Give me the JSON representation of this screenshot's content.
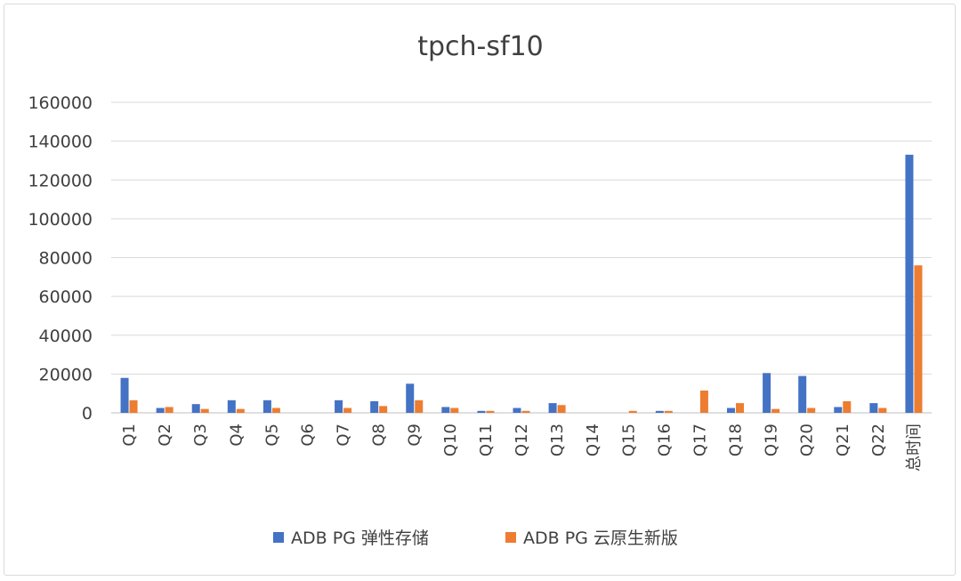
{
  "chart_data": {
    "type": "bar",
    "title": "tpch-sf10",
    "xlabel": "",
    "ylabel": "",
    "ylim": [
      0,
      160000
    ],
    "yticks": [
      "0",
      "20000",
      "40000",
      "60000",
      "80000",
      "100000",
      "120000",
      "140000",
      "160000"
    ],
    "grid": true,
    "legend_position": "bottom",
    "categories": [
      "Q1",
      "Q2",
      "Q3",
      "Q4",
      "Q5",
      "Q6",
      "Q7",
      "Q8",
      "Q9",
      "Q10",
      "Q11",
      "Q12",
      "Q13",
      "Q14",
      "Q15",
      "Q16",
      "Q17",
      "Q18",
      "Q19",
      "Q20",
      "Q21",
      "Q22",
      "总时间"
    ],
    "series": [
      {
        "name": "ADB PG 弹性存储",
        "color": "#4472C4",
        "values": [
          18000,
          2500,
          4500,
          6500,
          6500,
          0,
          6500,
          6000,
          15000,
          3000,
          1000,
          2500,
          5000,
          0,
          0,
          1000,
          0,
          2500,
          20500,
          19000,
          3000,
          5000,
          133000
        ]
      },
      {
        "name": "ADB PG 云原生新版",
        "color": "#ED7D31",
        "values": [
          6500,
          3000,
          2000,
          2000,
          2500,
          0,
          2500,
          3500,
          6500,
          2500,
          1000,
          1000,
          4000,
          0,
          1000,
          1000,
          11500,
          5000,
          2000,
          2500,
          6000,
          2500,
          76000
        ]
      }
    ]
  }
}
